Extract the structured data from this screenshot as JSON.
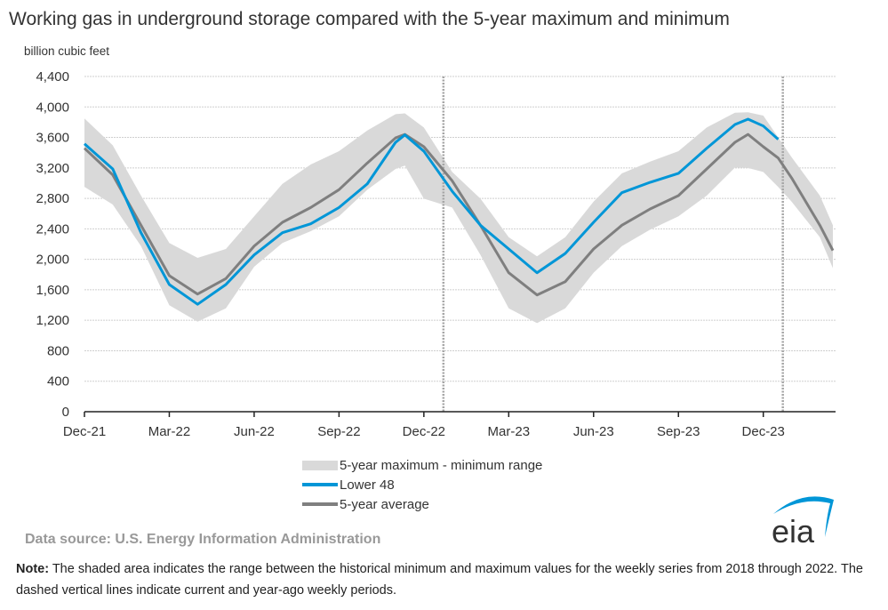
{
  "chart_data": {
    "type": "area",
    "title": "Working gas in underground  storage compared with the 5-year maximum and minimum",
    "ylabel": "billion cubic feet",
    "xlabel": "",
    "ylim": [
      0,
      4400
    ],
    "yticks": [
      0,
      400,
      800,
      1200,
      1600,
      2000,
      2400,
      2800,
      3200,
      3600,
      4000,
      4400
    ],
    "ytick_labels": [
      "0",
      "400",
      "800",
      "1,200",
      "1,600",
      "2,000",
      "2,400",
      "2,800",
      "3,200",
      "3,600",
      "4,000",
      "4,400"
    ],
    "xlim": [
      "2021-12-01",
      "2024-02-15"
    ],
    "xticks": [
      "2021-12-01",
      "2022-03-01",
      "2022-06-01",
      "2022-09-01",
      "2022-12-01",
      "2023-03-01",
      "2023-06-01",
      "2023-09-01",
      "2023-12-01"
    ],
    "xtick_labels": [
      "Dec-21",
      "Mar-22",
      "Jun-22",
      "Sep-22",
      "Dec-22",
      "Mar-23",
      "Jun-23",
      "Sep-23",
      "Dec-23"
    ],
    "grid": "horizontal dashed",
    "vertical_dashed_lines": [
      "2022-12-22",
      "2023-12-22"
    ],
    "dates": [
      "2021-12-01",
      "2022-01-01",
      "2022-02-01",
      "2022-03-01",
      "2022-04-01",
      "2022-05-01",
      "2022-06-01",
      "2022-07-01",
      "2022-08-01",
      "2022-09-01",
      "2022-10-01",
      "2022-11-01",
      "2022-11-11",
      "2022-12-01",
      "2023-01-01",
      "2023-02-01",
      "2023-03-01",
      "2023-04-01",
      "2023-05-01",
      "2023-06-01",
      "2023-07-01",
      "2023-08-01",
      "2023-09-01",
      "2023-10-01",
      "2023-11-01",
      "2023-11-15",
      "2023-12-01",
      "2023-12-17",
      "2024-01-01",
      "2024-02-01",
      "2024-02-15"
    ],
    "range": {
      "name": "5-year maximum - minimum range",
      "color": "#d9d9d9",
      "max": [
        3848,
        3497,
        2836,
        2214,
        2019,
        2136,
        2564,
        2991,
        3244,
        3419,
        3691,
        3906,
        3915,
        3731,
        3147,
        2797,
        2291,
        2039,
        2291,
        2758,
        3128,
        3283,
        3419,
        3731,
        3925,
        3930,
        3886,
        3600,
        3341,
        2836,
        2447
      ],
      "min": [
        2952,
        2719,
        2174,
        1397,
        1182,
        1357,
        1902,
        2214,
        2369,
        2564,
        2914,
        3186,
        3230,
        2797,
        2680,
        2058,
        1357,
        1163,
        1357,
        1824,
        2174,
        2389,
        2564,
        2836,
        3205,
        3200,
        3147,
        2950,
        2758,
        2291,
        1883
      ]
    },
    "series": [
      {
        "name": "Lower 48",
        "color": "#0096d7",
        "values": [
          3516,
          3186,
          2349,
          1669,
          1410,
          1669,
          2058,
          2349,
          2466,
          2680,
          2991,
          3536,
          3633,
          3419,
          2894,
          2447,
          2136,
          1824,
          2077,
          2486,
          2875,
          3011,
          3128,
          3458,
          3770,
          3840,
          3750,
          3575,
          null,
          null,
          null
        ]
      },
      {
        "name": "5-year average",
        "color": "#7f7f7f",
        "values": [
          3458,
          3108,
          2447,
          1786,
          1544,
          1747,
          2174,
          2486,
          2680,
          2914,
          3264,
          3594,
          3640,
          3478,
          3031,
          2447,
          1824,
          1532,
          1707,
          2136,
          2447,
          2661,
          2836,
          3186,
          3536,
          3640,
          3478,
          3330,
          3069,
          2447,
          2116
        ]
      }
    ],
    "legend_placement": "bottom-center"
  },
  "source": "Data source:  U.S. Energy Information Administration",
  "note_label": "Note:",
  "note_text": " The shaded area indicates the range between the historical minimum and maximum values for the weekly series from 2018 through 2022. The dashed vertical lines indicate current and year-ago weekly periods.",
  "logo_text": "eia",
  "logo_color": "#0096d7"
}
